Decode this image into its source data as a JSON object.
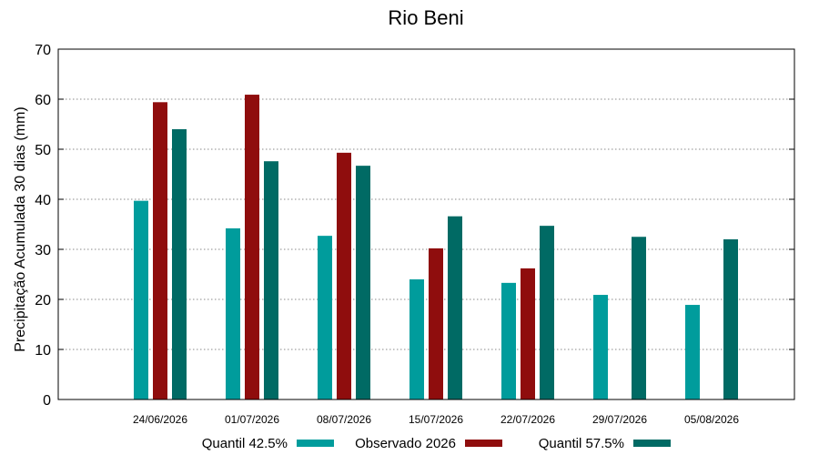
{
  "chart_data": {
    "type": "bar",
    "title": "Rio Beni",
    "ylabel": "Precipitação Acumulada 30 dias (mm)",
    "xlabel": "",
    "ylim": [
      0,
      70
    ],
    "yticks": [
      0,
      10,
      20,
      30,
      40,
      50,
      60,
      70
    ],
    "grid": true,
    "legend_position": "bottom",
    "categories": [
      "24/06/2026",
      "01/07/2026",
      "08/07/2026",
      "15/07/2026",
      "22/07/2026",
      "29/07/2026",
      "05/08/2026"
    ],
    "series": [
      {
        "name": "Quantil 42.5%",
        "color": "#009c9c",
        "values": [
          39.7,
          34.2,
          32.7,
          24.0,
          23.3,
          20.9,
          18.9
        ]
      },
      {
        "name": "Observado 2026",
        "color": "#8f0d0d",
        "values": [
          59.4,
          60.9,
          49.3,
          30.2,
          26.2,
          null,
          null
        ]
      },
      {
        "name": "Quantil 57.5%",
        "color": "#006a64",
        "values": [
          54.0,
          47.6,
          46.7,
          36.6,
          34.7,
          32.5,
          32.0
        ]
      }
    ]
  }
}
